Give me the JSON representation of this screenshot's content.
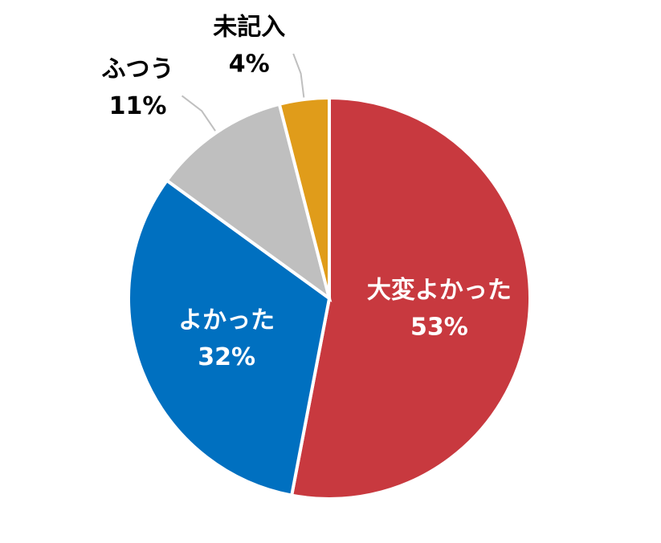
{
  "chart_data": {
    "type": "pie",
    "categories": [
      "大変よかった",
      "よかった",
      "ふつう",
      "未記入"
    ],
    "values": [
      53,
      32,
      11,
      4
    ],
    "value_labels": [
      "53%",
      "32%",
      "11%",
      "4%"
    ],
    "colors": [
      "#c8393f",
      "#0070c0",
      "#bfbfbf",
      "#e09c1a"
    ]
  }
}
